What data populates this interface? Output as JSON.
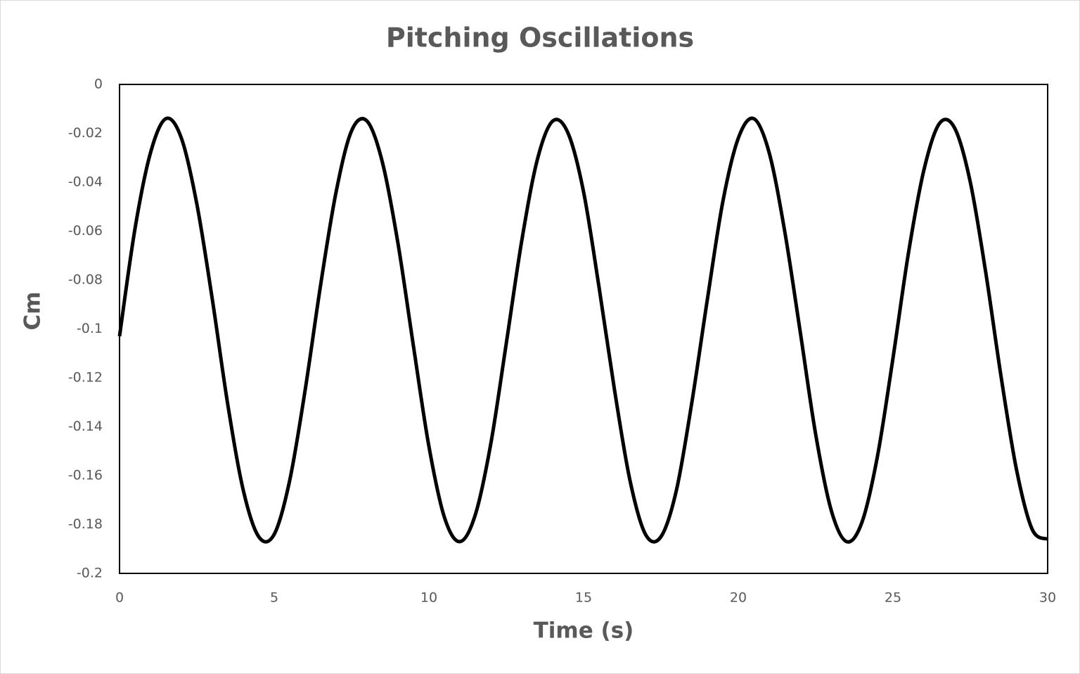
{
  "chart_data": {
    "type": "line",
    "title": "Pitching Oscillations",
    "x_label": "Time (s)",
    "y_label": "Cm",
    "x": [
      0,
      0.5,
      1,
      1.5,
      2,
      2.5,
      3,
      3.5,
      4,
      4.5,
      5,
      5.5,
      6,
      6.5,
      7,
      7.5,
      8,
      8.5,
      9,
      9.5,
      10,
      10.5,
      11,
      11.5,
      12,
      12.5,
      13,
      13.5,
      14,
      14.5,
      15,
      15.5,
      16,
      16.5,
      17,
      17.5,
      18,
      18.5,
      19,
      19.5,
      20,
      20.5,
      21,
      21.5,
      22,
      22.5,
      23,
      23.5,
      24,
      24.5,
      25,
      25.5,
      26,
      26.5,
      27,
      27.5,
      28,
      28.5,
      29,
      29.5,
      30
    ],
    "series": [
      {
        "color": "#000000",
        "values": [
          -0.103,
          -0.059,
          -0.028,
          -0.014,
          -0.022,
          -0.049,
          -0.088,
          -0.131,
          -0.166,
          -0.185,
          -0.184,
          -0.162,
          -0.125,
          -0.082,
          -0.044,
          -0.019,
          -0.015,
          -0.032,
          -0.065,
          -0.107,
          -0.148,
          -0.177,
          -0.187,
          -0.176,
          -0.147,
          -0.106,
          -0.064,
          -0.031,
          -0.015,
          -0.02,
          -0.044,
          -0.083,
          -0.125,
          -0.162,
          -0.184,
          -0.185,
          -0.166,
          -0.13,
          -0.088,
          -0.048,
          -0.022,
          -0.014,
          -0.028,
          -0.06,
          -0.101,
          -0.143,
          -0.174,
          -0.187,
          -0.179,
          -0.152,
          -0.112,
          -0.069,
          -0.035,
          -0.016,
          -0.018,
          -0.04,
          -0.077,
          -0.12,
          -0.158,
          -0.182,
          -0.186
        ]
      }
    ],
    "xlim": [
      0,
      30
    ],
    "xticks": [
      0,
      5,
      10,
      15,
      20,
      25,
      30
    ],
    "ylim": [
      -0.2,
      0
    ],
    "yticks": [
      0,
      -0.02,
      -0.04,
      -0.06,
      -0.08,
      -0.1,
      -0.12,
      -0.14,
      -0.16,
      -0.18,
      -0.2
    ],
    "grid": false
  }
}
